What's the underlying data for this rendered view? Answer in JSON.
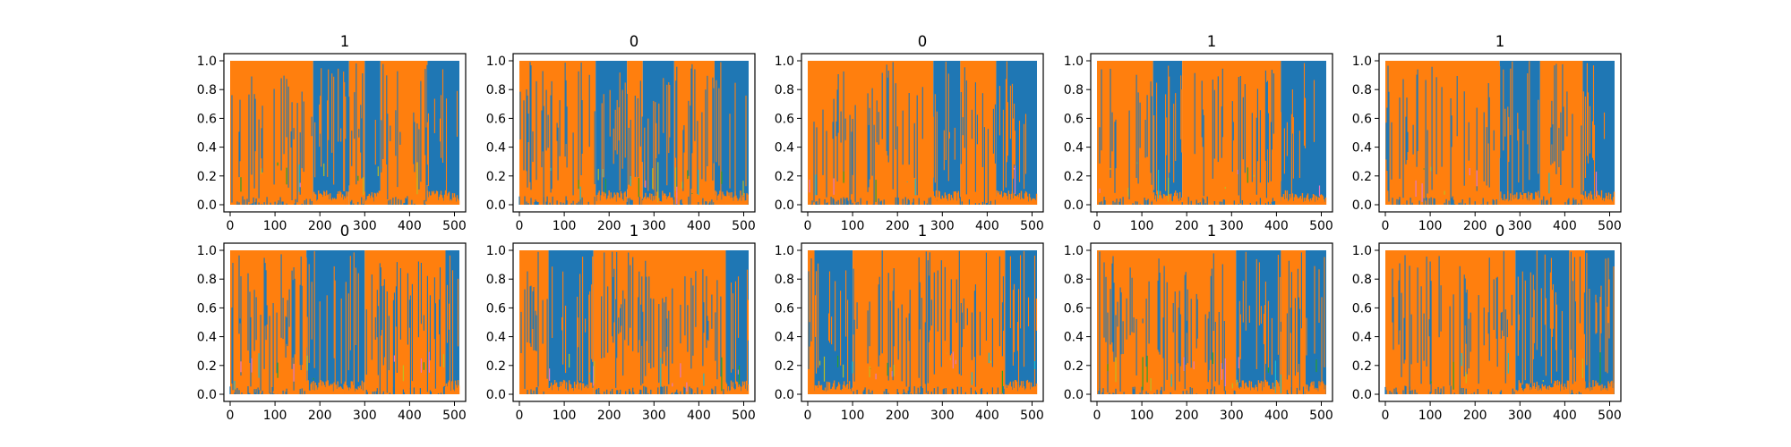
{
  "chart_data": [
    {
      "type": "area",
      "title": "1",
      "xlim": [
        0,
        511
      ],
      "ylim": [
        0.0,
        1.0
      ],
      "xticks": [
        "0",
        "100",
        "200",
        "300",
        "400",
        "500"
      ],
      "yticks": [
        "0.0",
        "0.2",
        "0.4",
        "0.6",
        "0.8",
        "1.0"
      ],
      "dominant": [
        {
          "from": 0,
          "to": 185,
          "series": "orange"
        },
        {
          "from": 185,
          "to": 265,
          "series": "blue"
        },
        {
          "from": 265,
          "to": 300,
          "series": "orange"
        },
        {
          "from": 300,
          "to": 335,
          "series": "blue"
        },
        {
          "from": 335,
          "to": 440,
          "series": "orange"
        },
        {
          "from": 440,
          "to": 511,
          "series": "blue"
        }
      ]
    },
    {
      "type": "area",
      "title": "0",
      "xlim": [
        0,
        511
      ],
      "ylim": [
        0.0,
        1.0
      ],
      "xticks": [
        "0",
        "100",
        "200",
        "300",
        "400",
        "500"
      ],
      "yticks": [
        "0.0",
        "0.2",
        "0.4",
        "0.6",
        "0.8",
        "1.0"
      ],
      "dominant": [
        {
          "from": 0,
          "to": 170,
          "series": "orange"
        },
        {
          "from": 170,
          "to": 240,
          "series": "blue"
        },
        {
          "from": 240,
          "to": 275,
          "series": "orange"
        },
        {
          "from": 275,
          "to": 345,
          "series": "blue"
        },
        {
          "from": 345,
          "to": 435,
          "series": "orange"
        },
        {
          "from": 435,
          "to": 511,
          "series": "blue"
        }
      ]
    },
    {
      "type": "area",
      "title": "0",
      "xlim": [
        0,
        511
      ],
      "ylim": [
        0.0,
        1.0
      ],
      "xticks": [
        "0",
        "100",
        "200",
        "300",
        "400",
        "500"
      ],
      "yticks": [
        "0.0",
        "0.2",
        "0.4",
        "0.6",
        "0.8",
        "1.0"
      ],
      "dominant": [
        {
          "from": 0,
          "to": 280,
          "series": "orange"
        },
        {
          "from": 280,
          "to": 340,
          "series": "blue"
        },
        {
          "from": 340,
          "to": 420,
          "series": "orange"
        },
        {
          "from": 420,
          "to": 511,
          "series": "blue"
        }
      ]
    },
    {
      "type": "area",
      "title": "1",
      "xlim": [
        0,
        511
      ],
      "ylim": [
        0.0,
        1.0
      ],
      "xticks": [
        "0",
        "100",
        "200",
        "300",
        "400",
        "500"
      ],
      "yticks": [
        "0.0",
        "0.2",
        "0.4",
        "0.6",
        "0.8",
        "1.0"
      ],
      "dominant": [
        {
          "from": 0,
          "to": 125,
          "series": "orange"
        },
        {
          "from": 125,
          "to": 190,
          "series": "blue"
        },
        {
          "from": 190,
          "to": 410,
          "series": "orange"
        },
        {
          "from": 410,
          "to": 511,
          "series": "blue"
        }
      ]
    },
    {
      "type": "area",
      "title": "1",
      "xlim": [
        0,
        511
      ],
      "ylim": [
        0.0,
        1.0
      ],
      "xticks": [
        "0",
        "100",
        "200",
        "300",
        "400",
        "500"
      ],
      "yticks": [
        "0.0",
        "0.2",
        "0.4",
        "0.6",
        "0.8",
        "1.0"
      ],
      "dominant": [
        {
          "from": 0,
          "to": 255,
          "series": "orange"
        },
        {
          "from": 255,
          "to": 345,
          "series": "blue"
        },
        {
          "from": 345,
          "to": 440,
          "series": "orange"
        },
        {
          "from": 440,
          "to": 511,
          "series": "blue"
        }
      ]
    },
    {
      "type": "area",
      "title": "0",
      "xlim": [
        0,
        511
      ],
      "ylim": [
        0.0,
        1.0
      ],
      "xticks": [
        "0",
        "100",
        "200",
        "300",
        "400",
        "500"
      ],
      "yticks": [
        "0.0",
        "0.2",
        "0.4",
        "0.6",
        "0.8",
        "1.0"
      ],
      "dominant": [
        {
          "from": 0,
          "to": 170,
          "series": "orange"
        },
        {
          "from": 170,
          "to": 300,
          "series": "blue"
        },
        {
          "from": 300,
          "to": 480,
          "series": "orange"
        },
        {
          "from": 480,
          "to": 511,
          "series": "blue"
        }
      ]
    },
    {
      "type": "area",
      "title": "1",
      "xlim": [
        0,
        511
      ],
      "ylim": [
        0.0,
        1.0
      ],
      "xticks": [
        "0",
        "100",
        "200",
        "300",
        "400",
        "500"
      ],
      "yticks": [
        "0.0",
        "0.2",
        "0.4",
        "0.6",
        "0.8",
        "1.0"
      ],
      "dominant": [
        {
          "from": 0,
          "to": 65,
          "series": "orange"
        },
        {
          "from": 65,
          "to": 165,
          "series": "blue"
        },
        {
          "from": 165,
          "to": 460,
          "series": "orange"
        },
        {
          "from": 460,
          "to": 511,
          "series": "blue"
        }
      ]
    },
    {
      "type": "area",
      "title": "1",
      "xlim": [
        0,
        511
      ],
      "ylim": [
        0.0,
        1.0
      ],
      "xticks": [
        "0",
        "100",
        "200",
        "300",
        "400",
        "500"
      ],
      "yticks": [
        "0.0",
        "0.2",
        "0.4",
        "0.6",
        "0.8",
        "1.0"
      ],
      "dominant": [
        {
          "from": 0,
          "to": 15,
          "series": "orange"
        },
        {
          "from": 15,
          "to": 100,
          "series": "blue"
        },
        {
          "from": 100,
          "to": 440,
          "series": "orange"
        },
        {
          "from": 440,
          "to": 511,
          "series": "blue"
        }
      ]
    },
    {
      "type": "area",
      "title": "1",
      "xlim": [
        0,
        511
      ],
      "ylim": [
        0.0,
        1.0
      ],
      "xticks": [
        "0",
        "100",
        "200",
        "300",
        "400",
        "500"
      ],
      "yticks": [
        "0.0",
        "0.2",
        "0.4",
        "0.6",
        "0.8",
        "1.0"
      ],
      "dominant": [
        {
          "from": 0,
          "to": 310,
          "series": "orange"
        },
        {
          "from": 310,
          "to": 410,
          "series": "blue"
        },
        {
          "from": 410,
          "to": 465,
          "series": "orange"
        },
        {
          "from": 465,
          "to": 511,
          "series": "blue"
        }
      ]
    },
    {
      "type": "area",
      "title": "0",
      "xlim": [
        0,
        511
      ],
      "ylim": [
        0.0,
        1.0
      ],
      "xticks": [
        "0",
        "100",
        "200",
        "300",
        "400",
        "500"
      ],
      "yticks": [
        "0.0",
        "0.2",
        "0.4",
        "0.6",
        "0.8",
        "1.0"
      ],
      "dominant": [
        {
          "from": 0,
          "to": 290,
          "series": "orange"
        },
        {
          "from": 290,
          "to": 410,
          "series": "blue"
        },
        {
          "from": 410,
          "to": 445,
          "series": "orange"
        },
        {
          "from": 445,
          "to": 511,
          "series": "blue"
        }
      ]
    }
  ],
  "colors": {
    "blue": "#1f77b4",
    "orange": "#ff7f0e",
    "cyan": "#17becf",
    "olive": "#bcbd22",
    "green": "#2ca02c",
    "pink": "#e377c2",
    "purple": "#9467bd",
    "gray": "#7f7f7f",
    "axes": "#000000",
    "background": "#ffffff"
  }
}
